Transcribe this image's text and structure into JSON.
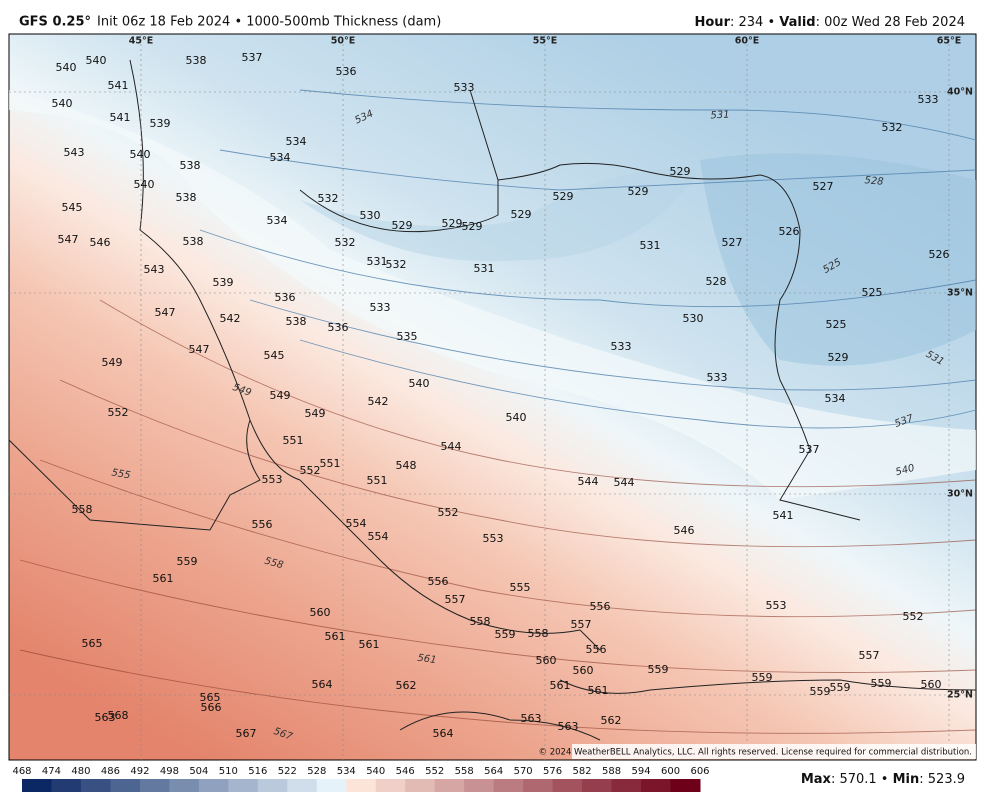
{
  "header": {
    "model": "GFS 0.25°",
    "description": "Init 06z 18 Feb 2024 • 1000-500mb Thickness (dam)",
    "hour_label": "Hour",
    "hour_value": ": 234 • ",
    "valid_label": "Valid",
    "valid_value": ": 00z Wed 28 Feb 2024"
  },
  "longitudes": [
    "45°E",
    "50°E",
    "55°E",
    "60°E",
    "65°E"
  ],
  "latitudes": [
    "40°N",
    "35°N",
    "30°N",
    "25°N"
  ],
  "map_labels": [
    "540",
    "540",
    "538",
    "537",
    "536",
    "533",
    "533",
    "532",
    "541",
    "540",
    "541",
    "539",
    "534",
    "543",
    "540",
    "538",
    "534",
    "540",
    "538",
    "545",
    "532",
    "530",
    "529",
    "529",
    "529",
    "529",
    "529",
    "529",
    "529",
    "527",
    "534",
    "547",
    "546",
    "538",
    "532",
    "531",
    "532",
    "531",
    "531",
    "527",
    "526",
    "526",
    "543",
    "539",
    "528",
    "536",
    "533",
    "525",
    "547",
    "542",
    "538",
    "536",
    "535",
    "530",
    "525",
    "547",
    "545",
    "533",
    "529",
    "549",
    "540",
    "533",
    "549",
    "542",
    "534",
    "552",
    "549",
    "540",
    "551",
    "544",
    "537",
    "552",
    "551",
    "548",
    "553",
    "551",
    "544",
    "544",
    "558",
    "552",
    "541",
    "556",
    "554",
    "554",
    "553",
    "546",
    "559",
    "561",
    "556",
    "555",
    "557",
    "560",
    "556",
    "553",
    "552",
    "565",
    "561",
    "561",
    "558",
    "559",
    "558",
    "557",
    "556",
    "560",
    "557",
    "564",
    "562",
    "559",
    "560",
    "559",
    "559",
    "559",
    "559",
    "560",
    "565",
    "566",
    "563",
    "568",
    "561",
    "561",
    "563",
    "563",
    "562",
    "567",
    "564"
  ],
  "contour_labels": [
    "531",
    "534",
    "528",
    "549",
    "555",
    "558",
    "561",
    "567",
    "537",
    "540",
    "525",
    "531"
  ],
  "copyright": "© 2024 WeatherBELL Analytics, LLC. All rights reserved. License required for commercial distribution.",
  "colorbar": {
    "ticks": [
      468,
      474,
      480,
      486,
      492,
      498,
      504,
      510,
      516,
      522,
      528,
      534,
      540,
      546,
      552,
      558,
      564,
      570,
      576,
      582,
      588,
      594,
      600,
      606
    ]
  },
  "stats": {
    "max_label": "Max",
    "max_value": ": 570.1 • ",
    "min_label": "Min",
    "min_value": ": 523.9"
  }
}
